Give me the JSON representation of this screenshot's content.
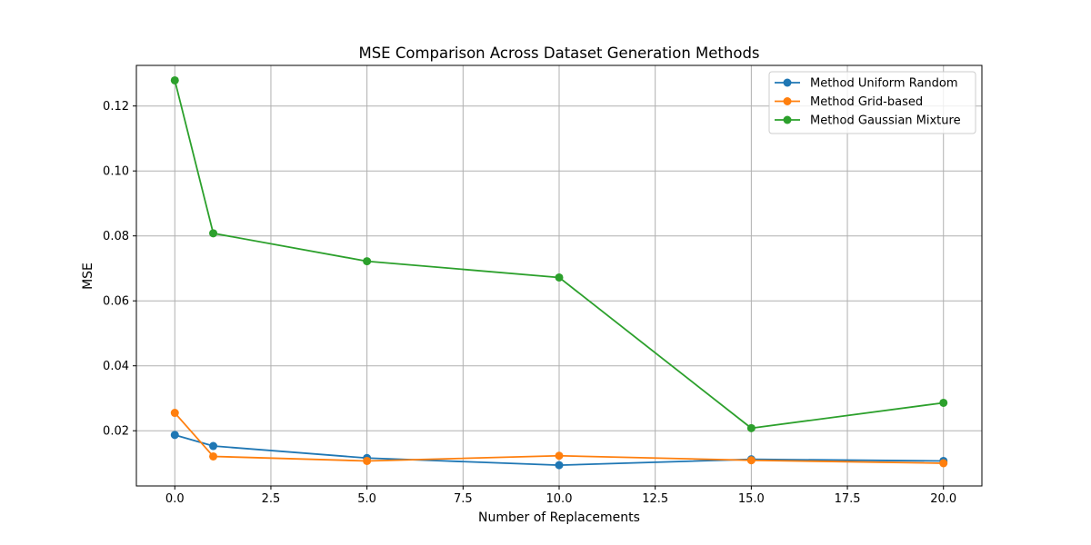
{
  "chart_data": {
    "type": "line",
    "title": "MSE Comparison Across Dataset Generation Methods",
    "xlabel": "Number of Replacements",
    "ylabel": "MSE",
    "x": [
      0,
      1,
      5,
      10,
      15,
      20
    ],
    "xlim": [
      -1,
      21
    ],
    "ylim": [
      0.003,
      0.1325
    ],
    "xticks": [
      0.0,
      2.5,
      5.0,
      7.5,
      10.0,
      12.5,
      15.0,
      17.5,
      20.0
    ],
    "xtick_labels": [
      "0.0",
      "2.5",
      "5.0",
      "7.5",
      "10.0",
      "12.5",
      "15.0",
      "17.5",
      "20.0"
    ],
    "yticks": [
      0.02,
      0.04,
      0.06,
      0.08,
      0.1,
      0.12
    ],
    "ytick_labels": [
      "0.02",
      "0.04",
      "0.06",
      "0.08",
      "0.10",
      "0.12"
    ],
    "grid": true,
    "legend_position": "top-right",
    "series": [
      {
        "name": "Method Uniform Random",
        "color": "#1f77b4",
        "values": [
          0.0187,
          0.0153,
          0.0116,
          0.0094,
          0.0112,
          0.0107
        ]
      },
      {
        "name": "Method Grid-based",
        "color": "#ff7f0e",
        "values": [
          0.0255,
          0.0121,
          0.0107,
          0.0123,
          0.0109,
          0.01
        ]
      },
      {
        "name": "Method Gaussian Mixture",
        "color": "#2ca02c",
        "values": [
          0.1279,
          0.0808,
          0.0722,
          0.0672,
          0.0208,
          0.0286
        ]
      }
    ]
  }
}
